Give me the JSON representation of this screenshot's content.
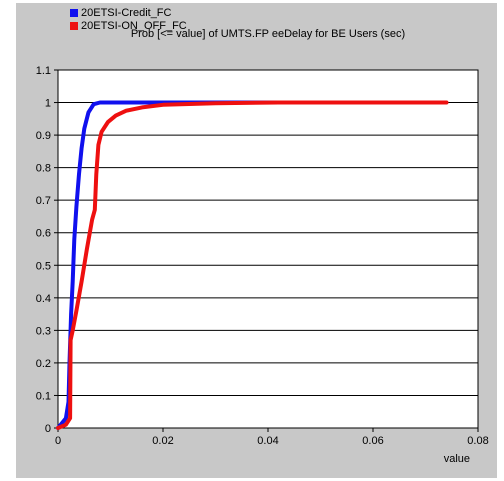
{
  "chart_data": {
    "type": "line",
    "title": "Prob [<= value] of UMTS.FP eeDelay for BE Users (sec)",
    "xlabel": "value",
    "ylabel": "",
    "xlim": [
      0,
      0.08
    ],
    "ylim": [
      0,
      1.1
    ],
    "x_ticks": [
      0,
      0.02,
      0.04,
      0.06,
      0.08
    ],
    "x_tick_labels": [
      "0",
      "0.02",
      "0.04",
      "0.06",
      "0.08"
    ],
    "y_ticks": [
      0,
      0.1,
      0.2,
      0.3,
      0.4,
      0.5,
      0.6,
      0.7,
      0.8,
      0.9,
      1,
      1.1
    ],
    "y_tick_labels": [
      "0",
      "0.1",
      "0.2",
      "0.3",
      "0.4",
      "0.5",
      "0.6",
      "0.7",
      "0.8",
      "0.9",
      "1",
      "1.1"
    ],
    "grid": "horizontal",
    "legend_position": "top-left",
    "series": [
      {
        "name": "20ETSI-Credit_FC",
        "color": "#1010ee",
        "points": [
          [
            0.0,
            0.0
          ],
          [
            0.0015,
            0.03
          ],
          [
            0.002,
            0.08
          ],
          [
            0.0022,
            0.2
          ],
          [
            0.0025,
            0.35
          ],
          [
            0.0028,
            0.45
          ],
          [
            0.0031,
            0.58
          ],
          [
            0.0035,
            0.68
          ],
          [
            0.004,
            0.78
          ],
          [
            0.0045,
            0.86
          ],
          [
            0.005,
            0.92
          ],
          [
            0.0058,
            0.97
          ],
          [
            0.0068,
            0.995
          ],
          [
            0.008,
            1.0
          ],
          [
            0.02,
            1.0
          ],
          [
            0.042,
            1.0
          ]
        ]
      },
      {
        "name": "20ETSI-ON_OFF_FC",
        "color": "#ee1010",
        "points": [
          [
            0.0,
            0.0
          ],
          [
            0.0015,
            0.01
          ],
          [
            0.0023,
            0.03
          ],
          [
            0.0024,
            0.27
          ],
          [
            0.0028,
            0.3
          ],
          [
            0.0035,
            0.36
          ],
          [
            0.0045,
            0.45
          ],
          [
            0.0055,
            0.55
          ],
          [
            0.0065,
            0.64
          ],
          [
            0.007,
            0.67
          ],
          [
            0.0073,
            0.78
          ],
          [
            0.0077,
            0.87
          ],
          [
            0.0083,
            0.91
          ],
          [
            0.0095,
            0.94
          ],
          [
            0.011,
            0.96
          ],
          [
            0.013,
            0.975
          ],
          [
            0.016,
            0.985
          ],
          [
            0.02,
            0.993
          ],
          [
            0.03,
            0.998
          ],
          [
            0.042,
            1.0
          ],
          [
            0.074,
            1.0
          ]
        ]
      }
    ]
  }
}
